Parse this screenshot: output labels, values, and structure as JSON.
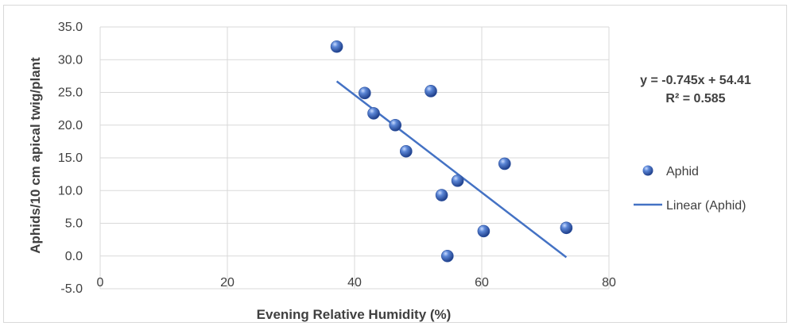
{
  "chart_data": {
    "type": "scatter",
    "xlabel": "Evening Relative Humidity (%)",
    "ylabel": "Aphids/10 cm apical twig/plant",
    "xlim": [
      0,
      80
    ],
    "ylim": [
      -5,
      35
    ],
    "x_ticks": [
      "0",
      "20",
      "40",
      "60",
      "80"
    ],
    "y_ticks": [
      "35.0",
      "30.0",
      "25.0",
      "20.0",
      "15.0",
      "10.0",
      "5.0",
      "0.0",
      "-5.0"
    ],
    "grid": true,
    "series": [
      {
        "name": "Aphid",
        "color": "#4472c4",
        "points": [
          {
            "x": 37.2,
            "y": 32.0
          },
          {
            "x": 41.6,
            "y": 24.9
          },
          {
            "x": 43.0,
            "y": 21.8
          },
          {
            "x": 46.4,
            "y": 20.0
          },
          {
            "x": 48.1,
            "y": 16.0
          },
          {
            "x": 52.0,
            "y": 25.2
          },
          {
            "x": 53.7,
            "y": 9.3
          },
          {
            "x": 54.6,
            "y": 0.0
          },
          {
            "x": 56.2,
            "y": 11.5
          },
          {
            "x": 60.3,
            "y": 3.8
          },
          {
            "x": 63.6,
            "y": 14.1
          },
          {
            "x": 73.3,
            "y": 4.3
          }
        ]
      }
    ],
    "trendline": {
      "name": "Linear (Aphid)",
      "color": "#4472c4",
      "slope": -0.745,
      "intercept": 54.41,
      "x_range": [
        37.2,
        73.3
      ]
    },
    "equation": "y = -0.745x + 54.41",
    "r_squared": "R² = 0.585",
    "legend": {
      "position": "right",
      "items": [
        "Aphid",
        "Linear (Aphid)"
      ]
    }
  }
}
